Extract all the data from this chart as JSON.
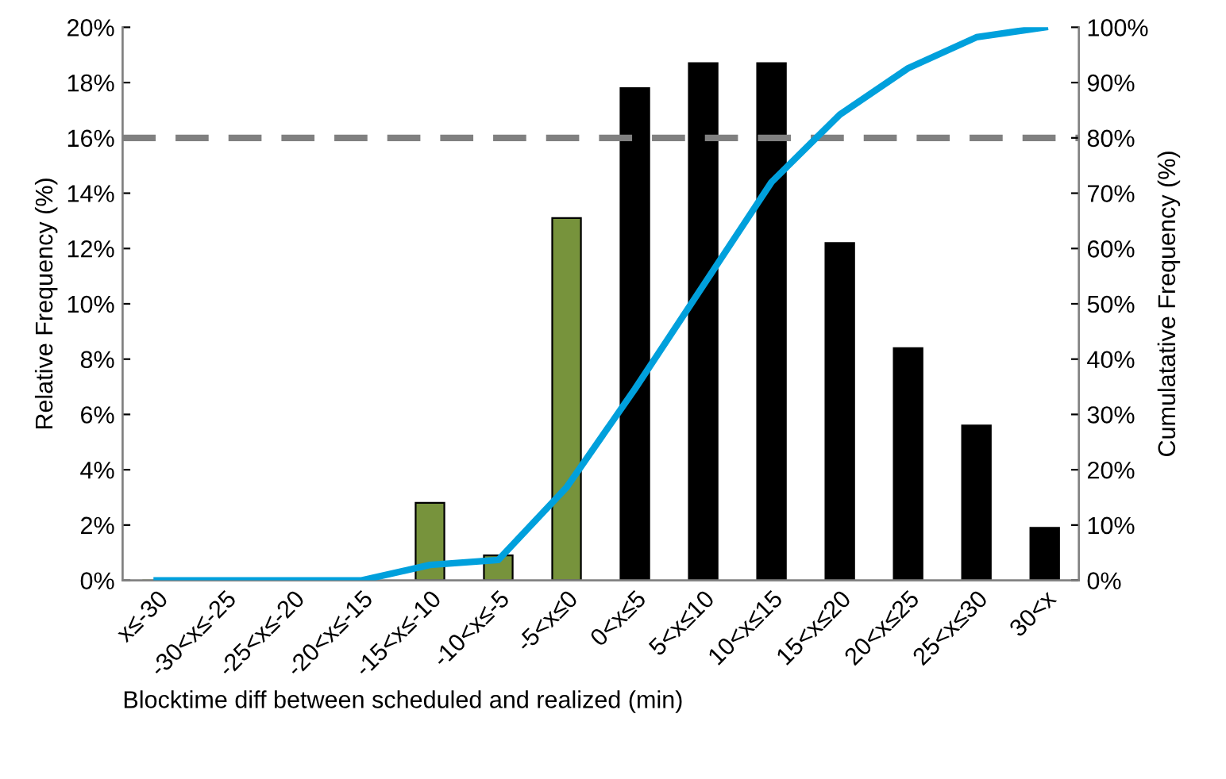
{
  "chart_data": {
    "type": "bar",
    "xlabel": "Blocktime diff between scheduled and realized (min)",
    "ylabel": "Relative Frequency (%)",
    "y2label": "Cumulatative Frequency (%)",
    "categories": [
      "x≤-30",
      "-30<x≤-25",
      "-25<x≤-20",
      "-20<x≤-15",
      "-15<x≤-10",
      "-10<x≤-5",
      "-5<x≤0",
      "0<x≤5",
      "5<x≤10",
      "10<x≤15",
      "15<x≤20",
      "20<x≤25",
      "25<x≤30",
      "30<x"
    ],
    "series": [
      {
        "colors": [
          "#77933c",
          "#77933c",
          "#77933c",
          "#77933c",
          "#77933c",
          "#77933c",
          "#77933c",
          "#000000",
          "#000000",
          "#000000",
          "#000000",
          "#000000",
          "#000000",
          "#000000"
        ],
        "values": [
          0,
          0,
          0,
          0,
          2.8,
          0.9,
          13.1,
          17.8,
          18.7,
          18.7,
          12.2,
          8.4,
          5.6,
          1.9
        ]
      },
      {
        "type": "line",
        "axis": "y2",
        "color": "#00a0dc",
        "values": [
          0,
          0,
          0,
          0,
          2.8,
          3.7,
          16.8,
          34.6,
          53.3,
          72.0,
          84.2,
          92.6,
          98.2,
          100
        ]
      }
    ],
    "ylim": [
      0,
      20
    ],
    "yticks": [
      {
        "value": 0,
        "label": "0%"
      },
      {
        "value": 2,
        "label": "2%"
      },
      {
        "value": 4,
        "label": "4%"
      },
      {
        "value": 6,
        "label": "6%"
      },
      {
        "value": 8,
        "label": "8%"
      },
      {
        "value": 10,
        "label": "10%"
      },
      {
        "value": 12,
        "label": "12%"
      },
      {
        "value": 14,
        "label": "14%"
      },
      {
        "value": 16,
        "label": "16%"
      },
      {
        "value": 18,
        "label": "18%"
      },
      {
        "value": 20,
        "label": "20%"
      }
    ],
    "y2lim": [
      0,
      100
    ],
    "y2ticks": [
      {
        "value": 0,
        "label": "0%"
      },
      {
        "value": 10,
        "label": "10%"
      },
      {
        "value": 20,
        "label": "20%"
      },
      {
        "value": 30,
        "label": "30%"
      },
      {
        "value": 40,
        "label": "40%"
      },
      {
        "value": 50,
        "label": "50%"
      },
      {
        "value": 60,
        "label": "60%"
      },
      {
        "value": 70,
        "label": "70%"
      },
      {
        "value": 80,
        "label": "80%"
      },
      {
        "value": 90,
        "label": "90%"
      },
      {
        "value": 100,
        "label": "100%"
      }
    ],
    "ref_lines": [
      {
        "axis": "y",
        "value": 16,
        "color": "#808080",
        "line_style": "dashed"
      }
    ],
    "grid": false,
    "marker": "none"
  }
}
